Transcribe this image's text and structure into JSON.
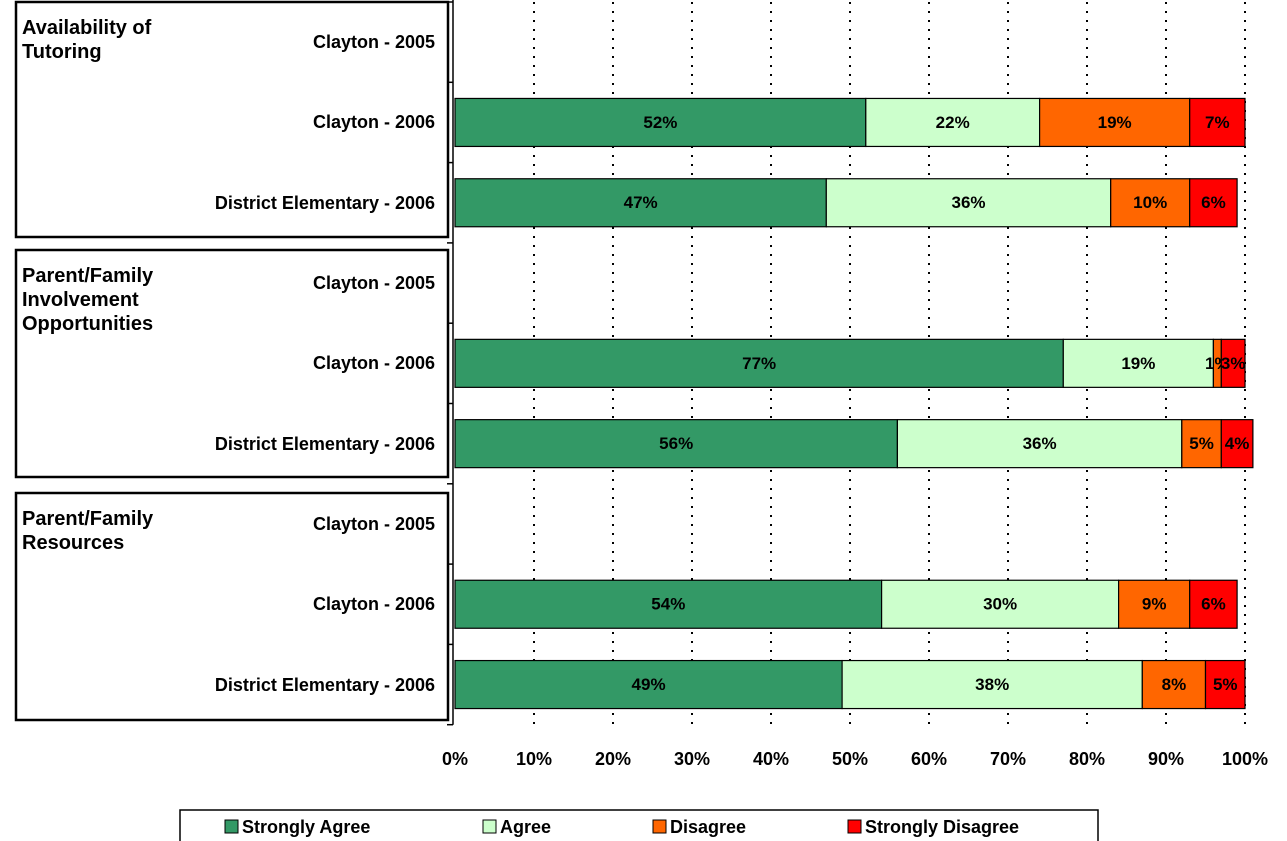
{
  "chart_data": {
    "type": "stacked_bar_horizontal",
    "groups": [
      {
        "name": "Availability of Tutoring",
        "categories": [
          "Clayton - 2005",
          "Clayton - 2006",
          "District Elementary - 2006"
        ]
      },
      {
        "name": "Parent/Family Involvement Opportunities",
        "categories": [
          "Clayton - 2005",
          "Clayton - 2006",
          "District Elementary - 2006"
        ]
      },
      {
        "name": "Parent/Family Resources",
        "categories": [
          "Clayton - 2005",
          "Clayton - 2006",
          "District Elementary - 2006"
        ]
      }
    ],
    "series": [
      {
        "name": "Strongly Agree",
        "color": "#339966",
        "values": [
          null,
          52,
          47,
          null,
          77,
          56,
          null,
          54,
          49
        ],
        "value_labels": [
          null,
          "52%",
          "47%",
          null,
          "77%",
          "56%",
          null,
          "54%",
          "49%"
        ]
      },
      {
        "name": "Agree",
        "color": "#ccffcc",
        "values": [
          null,
          22,
          36,
          null,
          19,
          36,
          null,
          30,
          38
        ],
        "value_labels": [
          null,
          "22%",
          "36%",
          null,
          "19%",
          "36%",
          null,
          "30%",
          "38%"
        ]
      },
      {
        "name": "Disagree",
        "color": "#ff6600",
        "values": [
          null,
          19,
          10,
          null,
          1,
          5,
          null,
          9,
          8
        ],
        "value_labels": [
          null,
          "19%",
          "10%",
          null,
          "1%",
          "5%",
          null,
          "9%",
          "8%"
        ]
      },
      {
        "name": "Strongly Disagree",
        "color": "#ff0000",
        "values": [
          null,
          7,
          6,
          null,
          3,
          4,
          null,
          6,
          5
        ],
        "value_labels": [
          null,
          "7%",
          "6%",
          null,
          "3%",
          "4%",
          null,
          "6%",
          "5%"
        ]
      }
    ],
    "xlim": [
      0,
      100
    ],
    "xticks": [
      {
        "value": 0,
        "label": "0%"
      },
      {
        "value": 10,
        "label": "10%"
      },
      {
        "value": 20,
        "label": "20%"
      },
      {
        "value": 30,
        "label": "30%"
      },
      {
        "value": 40,
        "label": "40%"
      },
      {
        "value": 50,
        "label": "50%"
      },
      {
        "value": 60,
        "label": "60%"
      },
      {
        "value": 70,
        "label": "70%"
      },
      {
        "value": 80,
        "label": "80%"
      },
      {
        "value": 90,
        "label": "90%"
      },
      {
        "value": 100,
        "label": "100%"
      }
    ],
    "grid": true,
    "legend": "bottom"
  }
}
